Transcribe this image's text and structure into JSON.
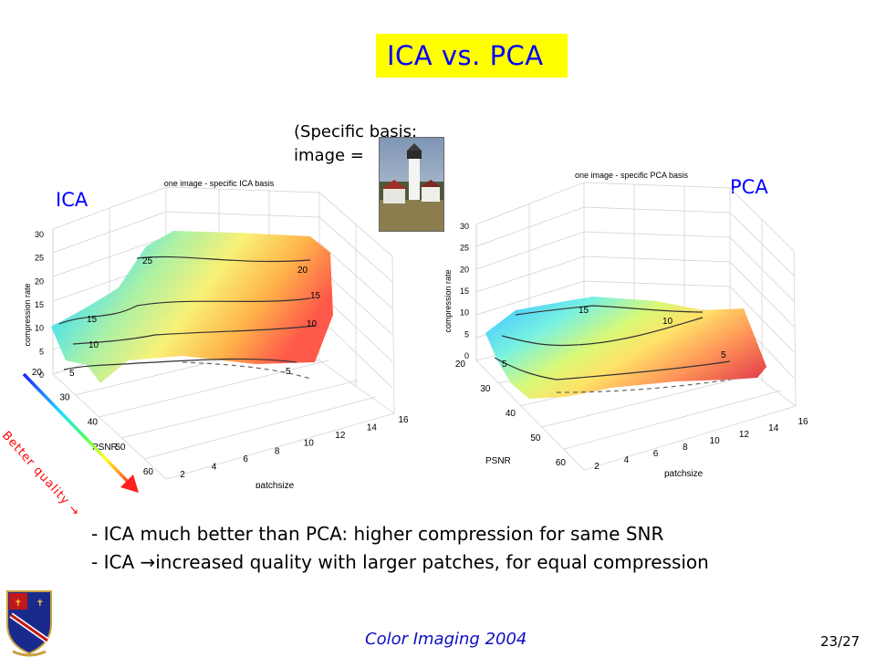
{
  "slide": {
    "title": "ICA vs. PCA",
    "note_line1": "(Specific basis:",
    "note_prefix": "image =",
    "note_suffix": ")",
    "left_label": "ICA",
    "right_label": "PCA",
    "better_quality": "Better quality",
    "bullet1": "- ICA much better than PCA: higher compression for same SNR",
    "bullet2_prefix": "- ICA ",
    "bullet2_arrow": "→",
    "bullet2_rest": "increased quality with larger patches, for equal compression",
    "footer": "Color Imaging 2004",
    "page": "23/27"
  },
  "colors": {
    "title_bg": "#ffff00",
    "title_text": "#0000ff",
    "label_blue": "#0000ff",
    "footer_blue": "#1010c0",
    "arrow_red": "#ff0000"
  },
  "icons": {
    "thumbnail": "lighthouse-photo-icon",
    "logo": "university-crest-icon",
    "quality_arrow": "gradient-arrow-icon"
  },
  "chart_data": [
    {
      "type": "surface3d",
      "title": "one image - specific ICA basis",
      "xlabel": "patchsize",
      "ylabel": "PSNR",
      "zlabel": "compression rate",
      "x_ticks": [
        "2",
        "4",
        "6",
        "8",
        "10",
        "12",
        "14",
        "16"
      ],
      "y_ticks": [
        "20",
        "30",
        "40",
        "50",
        "60"
      ],
      "z_ticks": [
        "0",
        "5",
        "10",
        "15",
        "20",
        "25",
        "30"
      ],
      "xlim": [
        2,
        16
      ],
      "ylim": [
        20,
        60
      ],
      "zlim": [
        0,
        30
      ],
      "contour_labels": [
        "25",
        "20",
        "15",
        "15",
        "10",
        "10",
        "5",
        "5"
      ],
      "colormap": "jet",
      "grid": true
    },
    {
      "type": "surface3d",
      "title": "one image - specific PCA basis",
      "xlabel": "patchsize",
      "ylabel": "PSNR",
      "zlabel": "compression rate",
      "x_ticks": [
        "2",
        "4",
        "6",
        "8",
        "10",
        "12",
        "14",
        "16"
      ],
      "y_ticks": [
        "20",
        "30",
        "40",
        "50",
        "60"
      ],
      "z_ticks": [
        "0",
        "5",
        "10",
        "15",
        "20",
        "25",
        "30"
      ],
      "xlim": [
        2,
        16
      ],
      "ylim": [
        20,
        60
      ],
      "zlim": [
        0,
        30
      ],
      "contour_labels": [
        "15",
        "10",
        "5",
        "5"
      ],
      "colormap": "jet",
      "grid": true
    }
  ]
}
